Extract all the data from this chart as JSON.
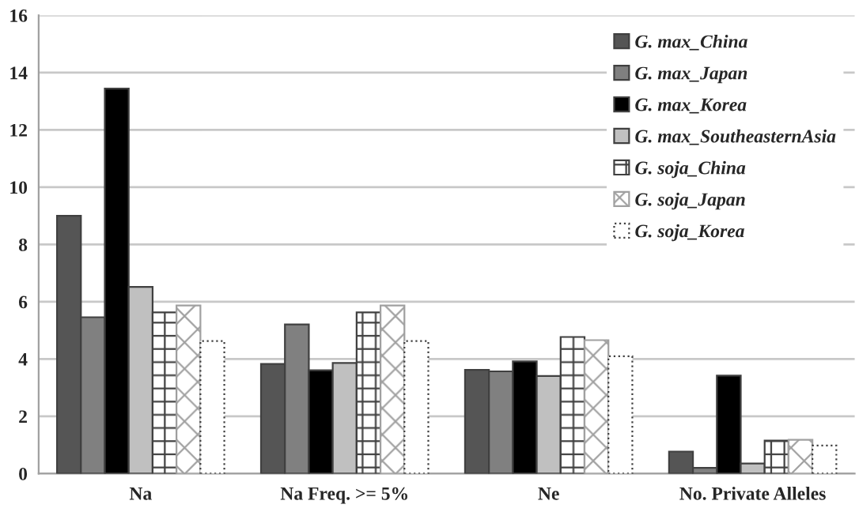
{
  "chart_data": {
    "type": "bar",
    "categories": [
      "Na",
      "Na Freq. >= 5%",
      "Ne",
      "No. Private Alleles"
    ],
    "series": [
      {
        "name": "G. max_China",
        "color": "#555555",
        "values": [
          9.0,
          3.83,
          3.62,
          0.77
        ]
      },
      {
        "name": "G. max_Japan",
        "color": "#808080",
        "values": [
          5.46,
          5.21,
          3.57,
          0.2
        ]
      },
      {
        "name": "G. max_Korea",
        "color": "#000000",
        "values": [
          13.44,
          3.61,
          3.92,
          3.42
        ]
      },
      {
        "name": "G. max_SoutheasternAsia",
        "color": "#c0c0c0",
        "values": [
          6.52,
          3.86,
          3.41,
          0.35
        ]
      },
      {
        "name": "G. soja_China",
        "color": "#404040",
        "values": [
          5.63,
          5.63,
          4.77,
          1.15
        ]
      },
      {
        "name": "G. soja_Japan",
        "color": "#a0a0a0",
        "values": [
          5.87,
          5.87,
          4.66,
          1.18
        ]
      },
      {
        "name": "G. soja_Korea",
        "color": "#ffffff",
        "values": [
          4.63,
          4.63,
          4.1,
          0.98
        ]
      }
    ],
    "ylim": [
      0,
      16
    ],
    "yticks": [
      0,
      2,
      4,
      6,
      8,
      10,
      12,
      14,
      16
    ],
    "grid": "y",
    "legend": "top right"
  }
}
